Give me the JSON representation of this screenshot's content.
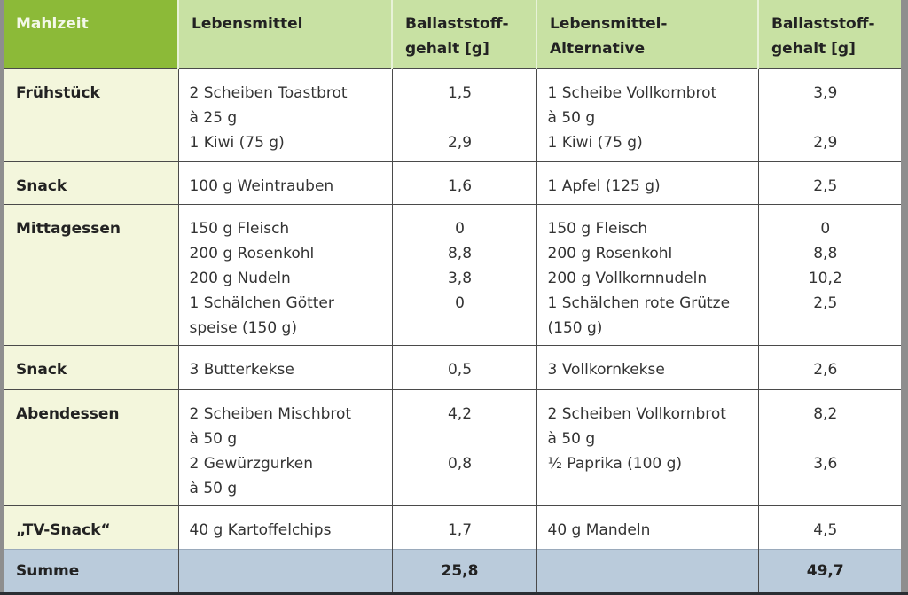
{
  "table": {
    "headers": {
      "meal": "Mahlzeit",
      "food": "Lebensmittel",
      "fiber": [
        "Ballaststoff-",
        "gehalt [g]"
      ],
      "alt_food": [
        "Lebensmittel-",
        "Alternative"
      ],
      "alt_fiber": [
        "Ballaststoff-",
        "gehalt [g]"
      ]
    },
    "rows": [
      {
        "meal": "Frühstück",
        "food": [
          "2 Scheiben Toastbrot",
          "à 25 g",
          "1 Kiwi (75 g)"
        ],
        "fiber": [
          "1,5",
          "",
          "2,9"
        ],
        "alt_food": [
          "1 Scheibe Vollkornbrot",
          "à 50 g",
          "1 Kiwi (75 g)"
        ],
        "alt_fiber": [
          "3,9",
          "",
          "2,9"
        ]
      },
      {
        "meal": "Snack",
        "food": [
          "100 g Weintrauben"
        ],
        "fiber": [
          "1,6"
        ],
        "alt_food": [
          "1 Apfel (125 g)"
        ],
        "alt_fiber": [
          "2,5"
        ]
      },
      {
        "meal": "Mittagessen",
        "food": [
          "150 g Fleisch",
          "200 g Rosenkohl",
          "200 g Nudeln",
          "1 Schälchen Götter",
          "speise (150 g)"
        ],
        "fiber": [
          "0",
          "8,8",
          "3,8",
          "0",
          ""
        ],
        "alt_food": [
          "150 g Fleisch",
          "200 g Rosenkohl",
          "200 g Vollkornnudeln",
          "1 Schälchen rote Grütze",
          "(150 g)"
        ],
        "alt_fiber": [
          "0",
          "8,8",
          "10,2",
          "2,5",
          ""
        ]
      },
      {
        "meal": "Snack",
        "food": [
          "3 Butterkekse"
        ],
        "fiber": [
          "0,5"
        ],
        "alt_food": [
          "3 Vollkornkekse"
        ],
        "alt_fiber": [
          "2,6"
        ]
      },
      {
        "meal": "Abendessen",
        "food": [
          "2 Scheiben Mischbrot",
          "à 50 g",
          "2 Gewürzgurken",
          "à 50 g"
        ],
        "fiber": [
          "4,2",
          "",
          "0,8",
          ""
        ],
        "alt_food": [
          "2 Scheiben Vollkornbrot",
          "à 50 g",
          "½ Paprika (100 g)",
          ""
        ],
        "alt_fiber": [
          "8,2",
          "",
          "3,6",
          ""
        ]
      },
      {
        "meal": "„TV-Snack“",
        "food": [
          "40 g Kartoffelchips"
        ],
        "fiber": [
          "1,7"
        ],
        "alt_food": [
          "40 g Mandeln"
        ],
        "alt_fiber": [
          "4,5"
        ]
      }
    ],
    "sum": {
      "label": "Summe",
      "fiber": "25,8",
      "alt_fiber": "49,7"
    }
  },
  "colors": {
    "header_first": "#8cba38",
    "header": "#c8e1a3",
    "first_column": "#f3f6dc",
    "sum_row": "#bacbdb"
  }
}
